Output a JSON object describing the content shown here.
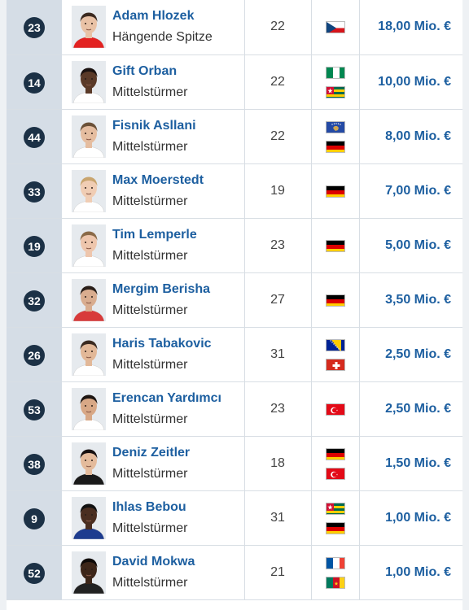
{
  "players": [
    {
      "number": "23",
      "name": "Adam Hlozek",
      "position": "Hängende Spitze",
      "age": "22",
      "flags": [
        "czech-flag"
      ],
      "value": "18,00 Mio. €"
    },
    {
      "number": "14",
      "name": "Gift Orban",
      "position": "Mittelstürmer",
      "age": "22",
      "flags": [
        "nigeria-flag",
        "togo-flag"
      ],
      "value": "10,00 Mio. €"
    },
    {
      "number": "44",
      "name": "Fisnik Asllani",
      "position": "Mittelstürmer",
      "age": "22",
      "flags": [
        "kosovo-flag",
        "germany-flag"
      ],
      "value": "8,00 Mio. €"
    },
    {
      "number": "33",
      "name": "Max Moerstedt",
      "position": "Mittelstürmer",
      "age": "19",
      "flags": [
        "germany-flag"
      ],
      "value": "7,00 Mio. €"
    },
    {
      "number": "19",
      "name": "Tim Lemperle",
      "position": "Mittelstürmer",
      "age": "23",
      "flags": [
        "germany-flag"
      ],
      "value": "5,00 Mio. €"
    },
    {
      "number": "32",
      "name": "Mergim Berisha",
      "position": "Mittelstürmer",
      "age": "27",
      "flags": [
        "germany-flag"
      ],
      "value": "3,50 Mio. €"
    },
    {
      "number": "26",
      "name": "Haris Tabakovic",
      "position": "Mittelstürmer",
      "age": "31",
      "flags": [
        "bosnia-flag",
        "switzerland-flag"
      ],
      "value": "2,50 Mio. €"
    },
    {
      "number": "53",
      "name": "Erencan Yardımcı",
      "position": "Mittelstürmer",
      "age": "23",
      "flags": [
        "turkey-flag"
      ],
      "value": "2,50 Mio. €"
    },
    {
      "number": "38",
      "name": "Deniz Zeitler",
      "position": "Mittelstürmer",
      "age": "18",
      "flags": [
        "germany-flag",
        "turkey-flag"
      ],
      "value": "1,50 Mio. €"
    },
    {
      "number": "9",
      "name": "Ihlas Bebou",
      "position": "Mittelstürmer",
      "age": "31",
      "flags": [
        "togo-flag",
        "germany-flag"
      ],
      "value": "1,00 Mio. €"
    },
    {
      "number": "52",
      "name": "David Mokwa",
      "position": "Mittelstürmer",
      "age": "21",
      "flags": [
        "france-flag",
        "cameroon-flag"
      ],
      "value": "1,00 Mio. €"
    }
  ],
  "colors": {
    "link": "#1d5fa0",
    "badge": "#1c3146",
    "number_column": "#d5dde6"
  }
}
